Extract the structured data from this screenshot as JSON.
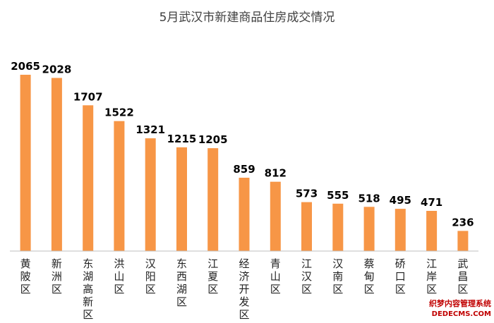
{
  "chart_data": {
    "type": "bar",
    "title": "5月武汉市新建商品住房成交情况",
    "categories": [
      "黄陂区",
      "新洲区",
      "东湖高新区",
      "洪山区",
      "汉阳区",
      "东西湖区",
      "江夏区",
      "经济开发区",
      "青山区",
      "江汉区",
      "汉南区",
      "蔡甸区",
      "硚口区",
      "江岸区",
      "武昌区"
    ],
    "values": [
      2065,
      2028,
      1707,
      1522,
      1321,
      1215,
      1205,
      859,
      812,
      573,
      555,
      518,
      495,
      471,
      236
    ],
    "xlabel": "",
    "ylabel": "",
    "ylim": [
      0,
      2065
    ],
    "grid": false,
    "legend": "none",
    "bar_color": "#f79646",
    "axis_color": "#bfbfbf"
  },
  "watermark": {
    "line1": "织梦内容管理系统",
    "line2": "DEDECMS.COM"
  }
}
